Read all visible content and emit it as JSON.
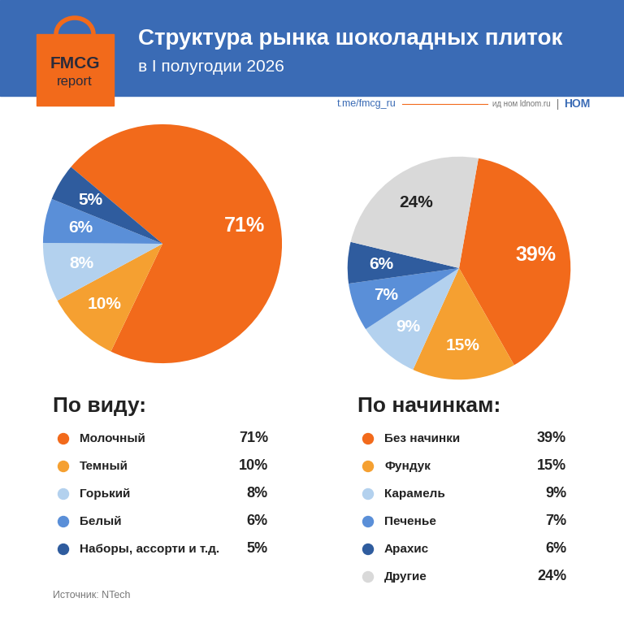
{
  "header": {
    "logo": [
      "FMCG",
      "report"
    ],
    "title": "Структура рынка шоколадных плиток",
    "subtitle": "в I полугодии 2026",
    "links": [
      "t.me/fmcg_ru",
      "ид ном ldnom.ru",
      "НОМ"
    ]
  },
  "chart_data": [
    {
      "type": "pie",
      "title": "По виду:",
      "categories": [
        "Молочный",
        "Темный",
        "Горький",
        "Белый",
        "Наборы, ассорти и т.д."
      ],
      "values": [
        71,
        10,
        8,
        6,
        5
      ],
      "value_labels": [
        "71%",
        "10%",
        "8%",
        "6%",
        "5%"
      ],
      "colors": [
        "#F26A1B",
        "#F5A031",
        "#B3D1EE",
        "#5A8FD8",
        "#2F5C9E"
      ],
      "data_labels": true
    },
    {
      "type": "pie",
      "title": "По начинкам:",
      "categories": [
        "Без начинки",
        "Фундук",
        "Карамель",
        "Печенье",
        "Арахис",
        "Другие"
      ],
      "values": [
        39,
        15,
        9,
        7,
        6,
        24
      ],
      "value_labels": [
        "39%",
        "15%",
        "9%",
        "7%",
        "6%",
        "24%"
      ],
      "colors": [
        "#F26A1B",
        "#F5A031",
        "#B3D1EE",
        "#5A8FD8",
        "#2F5C9E",
        "#D9D9D9"
      ],
      "data_labels": true
    }
  ],
  "source": "Источник: NTech"
}
